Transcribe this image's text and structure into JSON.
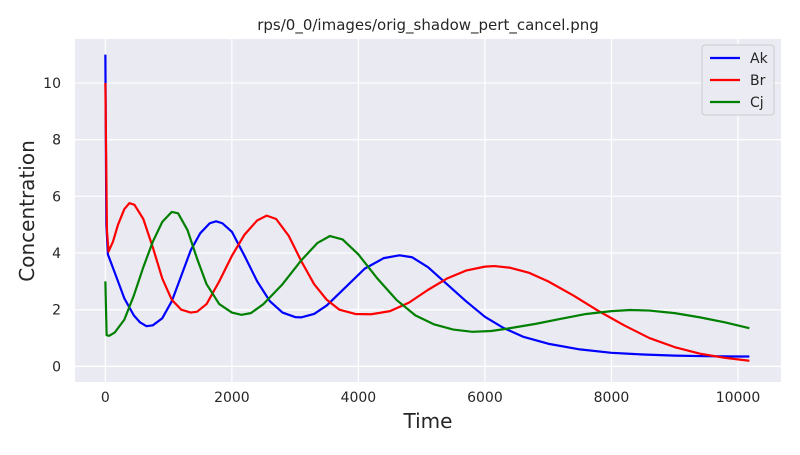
{
  "chart_data": {
    "type": "line",
    "title": "rps/0_0/images/orig_shadow_pert_cancel.png",
    "xlabel": "Time",
    "ylabel": "Concentration",
    "xlim": [
      -480,
      10680
    ],
    "ylim": [
      -0.55,
      11.55
    ],
    "xticks": [
      0,
      2000,
      4000,
      6000,
      8000,
      10000
    ],
    "xtick_labels": [
      "0",
      "2000",
      "4000",
      "6000",
      "8000",
      "10000"
    ],
    "yticks": [
      0,
      2,
      4,
      6,
      8,
      10
    ],
    "ytick_labels": [
      "0",
      "2",
      "4",
      "6",
      "8",
      "10"
    ],
    "grid": true,
    "legend_position": "top-right",
    "series": [
      {
        "name": "Ak",
        "color": "#0000ff",
        "points": [
          [
            0,
            11
          ],
          [
            15,
            5.0
          ],
          [
            40,
            3.95
          ],
          [
            150,
            3.3
          ],
          [
            300,
            2.4
          ],
          [
            450,
            1.8
          ],
          [
            550,
            1.55
          ],
          [
            650,
            1.42
          ],
          [
            750,
            1.45
          ],
          [
            900,
            1.7
          ],
          [
            1050,
            2.3
          ],
          [
            1200,
            3.2
          ],
          [
            1350,
            4.1
          ],
          [
            1500,
            4.7
          ],
          [
            1650,
            5.05
          ],
          [
            1750,
            5.12
          ],
          [
            1850,
            5.05
          ],
          [
            2000,
            4.75
          ],
          [
            2200,
            3.9
          ],
          [
            2400,
            3.0
          ],
          [
            2600,
            2.3
          ],
          [
            2800,
            1.9
          ],
          [
            3000,
            1.74
          ],
          [
            3100,
            1.73
          ],
          [
            3300,
            1.85
          ],
          [
            3500,
            2.15
          ],
          [
            3800,
            2.8
          ],
          [
            4100,
            3.45
          ],
          [
            4400,
            3.82
          ],
          [
            4650,
            3.92
          ],
          [
            4850,
            3.85
          ],
          [
            5100,
            3.5
          ],
          [
            5400,
            2.9
          ],
          [
            5700,
            2.3
          ],
          [
            6000,
            1.75
          ],
          [
            6300,
            1.35
          ],
          [
            6600,
            1.05
          ],
          [
            7000,
            0.8
          ],
          [
            7500,
            0.6
          ],
          [
            8000,
            0.48
          ],
          [
            8500,
            0.42
          ],
          [
            9000,
            0.38
          ],
          [
            9500,
            0.36
          ],
          [
            10000,
            0.35
          ],
          [
            10180,
            0.35
          ]
        ]
      },
      {
        "name": "Br",
        "color": "#ff0000",
        "points": [
          [
            0,
            10
          ],
          [
            25,
            4.8
          ],
          [
            50,
            4.05
          ],
          [
            120,
            4.4
          ],
          [
            200,
            5.0
          ],
          [
            300,
            5.55
          ],
          [
            380,
            5.76
          ],
          [
            460,
            5.7
          ],
          [
            600,
            5.2
          ],
          [
            750,
            4.2
          ],
          [
            900,
            3.1
          ],
          [
            1050,
            2.35
          ],
          [
            1200,
            2.0
          ],
          [
            1350,
            1.9
          ],
          [
            1450,
            1.93
          ],
          [
            1600,
            2.2
          ],
          [
            1800,
            3.0
          ],
          [
            2000,
            3.9
          ],
          [
            2200,
            4.65
          ],
          [
            2400,
            5.15
          ],
          [
            2550,
            5.32
          ],
          [
            2700,
            5.2
          ],
          [
            2900,
            4.6
          ],
          [
            3100,
            3.7
          ],
          [
            3300,
            2.9
          ],
          [
            3500,
            2.35
          ],
          [
            3700,
            2.0
          ],
          [
            3950,
            1.85
          ],
          [
            4200,
            1.84
          ],
          [
            4500,
            1.95
          ],
          [
            4800,
            2.25
          ],
          [
            5100,
            2.7
          ],
          [
            5400,
            3.1
          ],
          [
            5700,
            3.38
          ],
          [
            6000,
            3.52
          ],
          [
            6150,
            3.54
          ],
          [
            6400,
            3.48
          ],
          [
            6700,
            3.3
          ],
          [
            7000,
            3.0
          ],
          [
            7400,
            2.5
          ],
          [
            7800,
            1.95
          ],
          [
            8200,
            1.45
          ],
          [
            8600,
            1.0
          ],
          [
            9000,
            0.68
          ],
          [
            9400,
            0.45
          ],
          [
            9800,
            0.3
          ],
          [
            10180,
            0.2
          ]
        ]
      },
      {
        "name": "Cj",
        "color": "#008000",
        "points": [
          [
            0,
            3.0
          ],
          [
            20,
            1.1
          ],
          [
            60,
            1.08
          ],
          [
            150,
            1.2
          ],
          [
            300,
            1.65
          ],
          [
            450,
            2.5
          ],
          [
            600,
            3.5
          ],
          [
            750,
            4.4
          ],
          [
            900,
            5.1
          ],
          [
            1050,
            5.45
          ],
          [
            1150,
            5.4
          ],
          [
            1300,
            4.8
          ],
          [
            1450,
            3.8
          ],
          [
            1600,
            2.9
          ],
          [
            1800,
            2.2
          ],
          [
            2000,
            1.9
          ],
          [
            2150,
            1.82
          ],
          [
            2300,
            1.88
          ],
          [
            2500,
            2.2
          ],
          [
            2800,
            2.9
          ],
          [
            3100,
            3.75
          ],
          [
            3350,
            4.35
          ],
          [
            3550,
            4.6
          ],
          [
            3750,
            4.48
          ],
          [
            4000,
            3.95
          ],
          [
            4300,
            3.1
          ],
          [
            4600,
            2.35
          ],
          [
            4900,
            1.8
          ],
          [
            5200,
            1.48
          ],
          [
            5500,
            1.3
          ],
          [
            5800,
            1.22
          ],
          [
            6100,
            1.25
          ],
          [
            6400,
            1.35
          ],
          [
            6800,
            1.5
          ],
          [
            7200,
            1.68
          ],
          [
            7600,
            1.85
          ],
          [
            8000,
            1.95
          ],
          [
            8300,
            1.99
          ],
          [
            8600,
            1.97
          ],
          [
            9000,
            1.88
          ],
          [
            9400,
            1.73
          ],
          [
            9800,
            1.55
          ],
          [
            10180,
            1.35
          ]
        ]
      }
    ]
  }
}
